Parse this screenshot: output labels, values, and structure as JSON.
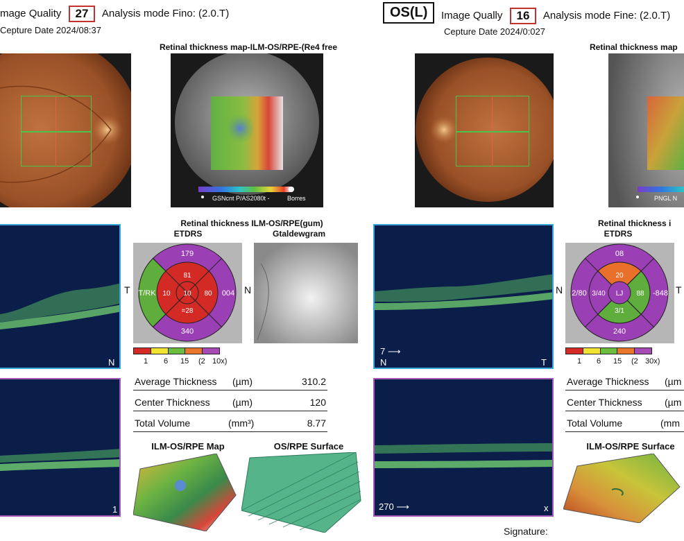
{
  "left": {
    "header": {
      "image_quality_label": "mage Quality",
      "image_quality_value": "27",
      "analysis_mode": "Analysis mode Fino: (2.0.T)",
      "capture_date": "Cepture Date 2024/08:37"
    },
    "thickness_map_title": "Retinal thickness map-ILM-OS/RPE-(Re4 free",
    "colorbar_caption": "GSNcnt P/AS2080t -",
    "colorbar_end_label": "Borres",
    "etdrs_title_line1": "Retinal thickness ILM-OS/RPE(gum)",
    "etdrs_title_line2": "ETDRS",
    "gray_title": "Gtaldewgram",
    "etdrs_values": {
      "top": "179",
      "left": "T/RK",
      "right": "004",
      "bottom": "340",
      "inner_top": "81",
      "inner_left": "10",
      "inner_right": "80",
      "inner_bottom": "=28",
      "center": "10"
    },
    "side_letters": {
      "t": "T",
      "n": "N",
      "oct_n": "N",
      "oct2_tag": "1"
    },
    "scale_labels": [
      "1",
      "6",
      "15",
      "(2",
      "10x)"
    ],
    "metrics": [
      {
        "label": "Average Thickness",
        "unit": "(µm)",
        "value": "310.2"
      },
      {
        "label": "Center Thickness",
        "unit": "(µm)",
        "value": "120"
      },
      {
        "label": "Total Volume",
        "unit": "(mm³)",
        "value": "8.77"
      }
    ],
    "map3d_title": "ILM-OS/RPE Map",
    "surface_title": "OS/RPE Surface"
  },
  "right": {
    "eye_label": "OS(L)",
    "header": {
      "image_quality_label": "Image Qually",
      "image_quality_value": "16",
      "analysis_mode": "Analysis mode Fine: (2.0.T)",
      "capture_date": "Cepture Date 2024/0:027"
    },
    "thickness_map_title": "Retinal thickness map",
    "colorbar_caption": "PNGL N",
    "etdrs_title_line1": "Retinal thickness i",
    "etdrs_title_line2": "ETDRS",
    "etdrs_values": {
      "top": "08",
      "left": "2/80",
      "right": "-848",
      "bottom": "240",
      "inner_top": "20",
      "inner_left": "3/40",
      "inner_right": "88",
      "inner_bottom": "3/1",
      "center": "LJ"
    },
    "side_letters": {
      "n": "N",
      "t": "T",
      "oct_n": "N",
      "oct_t": "T",
      "oct2_tag": "x"
    },
    "oct_arrow_label": "7 ⟶",
    "oct2_arrow_label": "270 ⟶",
    "scale_labels": [
      "1",
      "6",
      "15",
      "(2",
      "30x)"
    ],
    "metrics": [
      {
        "label": "Average Thickness",
        "unit": "(µm"
      },
      {
        "label": "Center Thickness",
        "unit": "(µm"
      },
      {
        "label": "Total Volume",
        "unit": "(mm"
      }
    ],
    "surface_title": "ILM-OS/RPE Surface",
    "signature_label": "Signature:"
  },
  "colors": {
    "oct_bg": "#0a1e49",
    "blue_border": "#3aa7db",
    "purple_border": "#a65bb5",
    "quality_box": "#c4302b",
    "etdrs_purple": "#9b3fb5",
    "etdrs_red": "#d32a25",
    "etdrs_green": "#5fae3d",
    "etdrs_orange": "#e8702a"
  },
  "scale_colors": [
    "#d42a25",
    "#f2e232",
    "#6bbd3f",
    "#e8772c",
    "#a64bb6"
  ]
}
